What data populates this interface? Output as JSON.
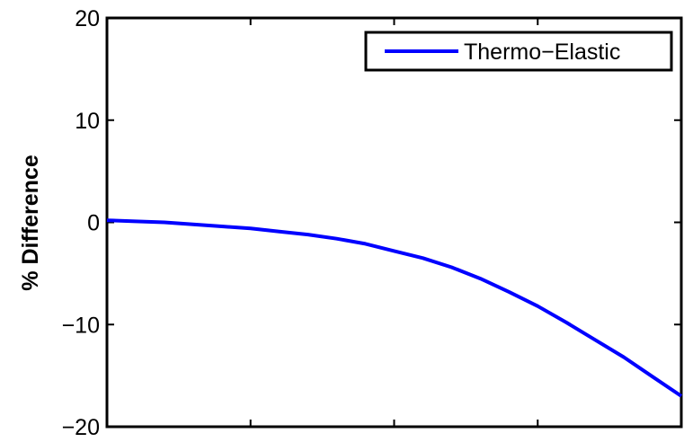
{
  "chart_data": {
    "type": "line",
    "title": "",
    "xlabel": "",
    "ylabel": "% Difference",
    "xlim": [
      0,
      1
    ],
    "ylim": [
      -20,
      20
    ],
    "yticks": [
      -20,
      -10,
      0,
      10,
      20
    ],
    "ytick_labels": [
      "−20",
      "−10",
      "0",
      "10",
      "20"
    ],
    "grid": false,
    "legend_placement": "top-right",
    "series": [
      {
        "name": "Thermo−Elastic",
        "color": "#0000ff",
        "x": [
          0,
          0.05,
          0.1,
          0.15,
          0.2,
          0.25,
          0.3,
          0.35,
          0.4,
          0.45,
          0.5,
          0.55,
          0.6,
          0.65,
          0.7,
          0.75,
          0.8,
          0.85,
          0.9,
          0.95,
          1.0
        ],
        "y": [
          0.2,
          0.1,
          0.0,
          -0.2,
          -0.4,
          -0.6,
          -0.9,
          -1.2,
          -1.6,
          -2.1,
          -2.8,
          -3.5,
          -4.4,
          -5.5,
          -6.8,
          -8.2,
          -9.8,
          -11.5,
          -13.2,
          -15.1,
          -17.0
        ]
      }
    ]
  }
}
